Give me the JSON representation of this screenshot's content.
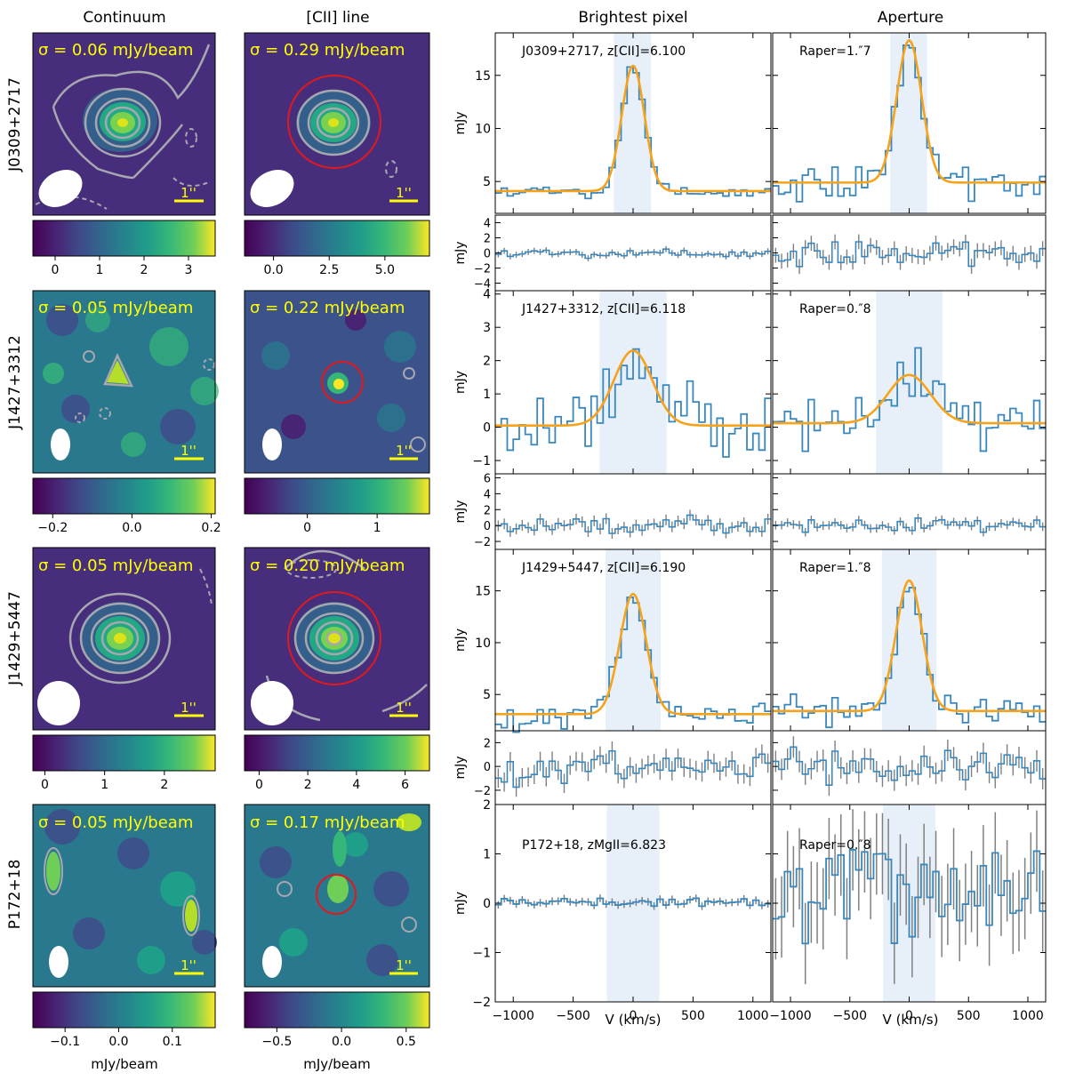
{
  "colors": {
    "hist": "#3a87be",
    "fit": "#f6a21a",
    "shade": "#e7f0f8",
    "err": "#808080",
    "sigma_text": "#ffff00",
    "contour": "#a7a7b0",
    "circle": "#e0191d",
    "scale": "#ffff00"
  },
  "columns": {
    "continuum": "Continuum",
    "line": "[CII] line",
    "brightest": "Brightest pixel",
    "aperture": "Aperture"
  },
  "scale_label": "1''",
  "colorbar_unit": "mJy/beam",
  "xaxis": {
    "label": "V (km/s)",
    "ticks": [
      "−1000",
      "−500",
      "0",
      "500",
      "1000"
    ]
  },
  "rows": [
    {
      "name": "J0309+2717",
      "cont_sigma": "σ = 0.06 mJy/beam",
      "line_sigma": "σ = 0.29 mJy/beam",
      "cont_cbar": {
        "min": -0.5,
        "max": 3.6,
        "ticks": [
          0,
          1,
          2,
          3
        ],
        "labels": [
          "0",
          "1",
          "2",
          "3"
        ]
      },
      "line_cbar": {
        "min": -1.3,
        "max": 7.0,
        "ticks": [
          0,
          2.5,
          5
        ],
        "labels": [
          "0.0",
          "2.5",
          "5.0"
        ]
      },
      "bright_label": "J0309+2717, z[CII]=6.100",
      "aper_label": "Raper=1.″7",
      "spec_ylabel": "mJy",
      "resid_ylabel": "mJy",
      "spec_yticks": [
        "5",
        "10",
        "15"
      ],
      "resid_yticks": [
        "−4",
        "−2",
        "0",
        "2",
        "4"
      ],
      "chart_data": {
        "type": "line",
        "ylim": [
          2,
          19
        ],
        "resid_ylim": [
          -5,
          5
        ],
        "shade": [
          -160,
          150
        ],
        "bright": {
          "amp": 11.8,
          "cont": 4.1,
          "mu": 0,
          "sig": 95,
          "noise": 0.45
        },
        "aper": {
          "amp": 13.4,
          "cont": 4.9,
          "mu": 0,
          "sig": 105,
          "noise": 1.1
        }
      }
    },
    {
      "name": "J1427+3312",
      "cont_sigma": "σ = 0.05 mJy/beam",
      "line_sigma": "σ = 0.22 mJy/beam",
      "cont_cbar": {
        "min": -0.25,
        "max": 0.21,
        "ticks": [
          -0.2,
          0,
          0.2
        ],
        "labels": [
          "−0.2",
          "0.0",
          "0.2"
        ]
      },
      "line_cbar": {
        "min": -0.9,
        "max": 1.75,
        "ticks": [
          0,
          1
        ],
        "labels": [
          "0",
          "1"
        ]
      },
      "bright_label": "J1427+3312, z[CII]=6.118",
      "aper_label": "Raper=0.″8",
      "spec_ylabel": "mJy",
      "resid_ylabel": "mJy",
      "spec_yticks": [
        "−1",
        "0",
        "1",
        "2",
        "3",
        "4"
      ],
      "resid_yticks": [
        "−2",
        "0",
        "2",
        "4",
        "6"
      ],
      "chart_data": {
        "type": "line",
        "ylim": [
          -1.4,
          4.1
        ],
        "resid_ylim": [
          -3,
          6.5
        ],
        "shade": [
          -280,
          280
        ],
        "bright": {
          "amp": 2.25,
          "cont": 0.05,
          "mu": 0,
          "sig": 160,
          "noise": 0.75
        },
        "aper": {
          "amp": 1.45,
          "cont": 0.12,
          "mu": 0,
          "sig": 180,
          "noise": 0.6
        }
      }
    },
    {
      "name": "J1429+5447",
      "cont_sigma": "σ = 0.05 mJy/beam",
      "line_sigma": "σ = 0.20 mJy/beam",
      "cont_cbar": {
        "min": -0.2,
        "max": 2.85,
        "ticks": [
          0,
          1,
          2
        ],
        "labels": [
          "0",
          "1",
          "2"
        ]
      },
      "line_cbar": {
        "min": -0.6,
        "max": 7.0,
        "ticks": [
          0,
          2,
          4,
          6
        ],
        "labels": [
          "0",
          "2",
          "4",
          "6"
        ]
      },
      "bright_label": "J1429+5447, z[CII]=6.190",
      "aper_label": "Raper=1.″8",
      "spec_ylabel": "mJy",
      "resid_ylabel": "mJy",
      "spec_yticks": [
        "5",
        "10",
        "15"
      ],
      "resid_yticks": [
        "−2",
        "0",
        "2"
      ],
      "chart_data": {
        "type": "line",
        "ylim": [
          1.5,
          19
        ],
        "resid_ylim": [
          -3.2,
          3
        ],
        "shade": [
          -230,
          230
        ],
        "bright": {
          "amp": 11.6,
          "cont": 3.1,
          "mu": 0,
          "sig": 110,
          "noise": 0.9
        },
        "aper": {
          "amp": 12.6,
          "cont": 3.4,
          "mu": 0,
          "sig": 110,
          "noise": 1.0
        }
      }
    },
    {
      "name": "P172+18",
      "cont_sigma": "σ = 0.05 mJy/beam",
      "line_sigma": "σ = 0.17 mJy/beam",
      "cont_cbar": {
        "min": -0.16,
        "max": 0.18,
        "ticks": [
          -0.1,
          0,
          0.1
        ],
        "labels": [
          "−0.1",
          "0.0",
          "0.1"
        ]
      },
      "line_cbar": {
        "min": -0.75,
        "max": 0.68,
        "ticks": [
          -0.5,
          0,
          0.5
        ],
        "labels": [
          "−0.5",
          "0.0",
          "0.5"
        ]
      },
      "bright_label": "P172+18, zMgII=6.823",
      "aper_label": "Raper=0.″8",
      "spec_ylabel": "mJy",
      "spec_yticks": [
        "−2",
        "−1",
        "0",
        "1",
        "2"
      ],
      "chart_data": {
        "type": "line",
        "ylim": [
          -2,
          2
        ],
        "shade": [
          -220,
          220
        ],
        "bright": {
          "amp": 0,
          "cont": 0.02,
          "mu": 0,
          "sig": 100,
          "noise": 0.07
        },
        "aper": {
          "amp": 0,
          "cont": 0.15,
          "mu": 0,
          "sig": 100,
          "noise": 0.75
        }
      }
    }
  ]
}
